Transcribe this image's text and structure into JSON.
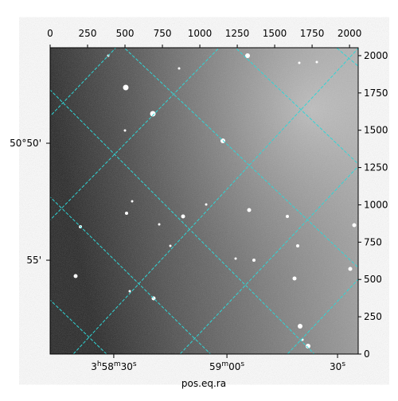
{
  "chart_data": {
    "type": "image",
    "xlim": [
      0,
      2058
    ],
    "ylim": [
      0,
      2053
    ],
    "xticks": [
      0,
      250,
      500,
      750,
      1000,
      1250,
      1500,
      1750,
      2000
    ],
    "yticks": [
      0,
      250,
      500,
      750,
      1000,
      1250,
      1500,
      1750,
      2000
    ],
    "ra_ticks": [
      {
        "value": 425,
        "label": "3h58m30s"
      },
      {
        "value": 1181,
        "label": "59m00s"
      },
      {
        "value": 1920,
        "label": "30s"
      }
    ],
    "dec_ticks": [
      {
        "value": 1413,
        "label": "50°50'"
      },
      {
        "value": 629,
        "label": "55'"
      }
    ],
    "xlabel": "pos.eq.ra",
    "grid_color": "#2fd6d6"
  }
}
